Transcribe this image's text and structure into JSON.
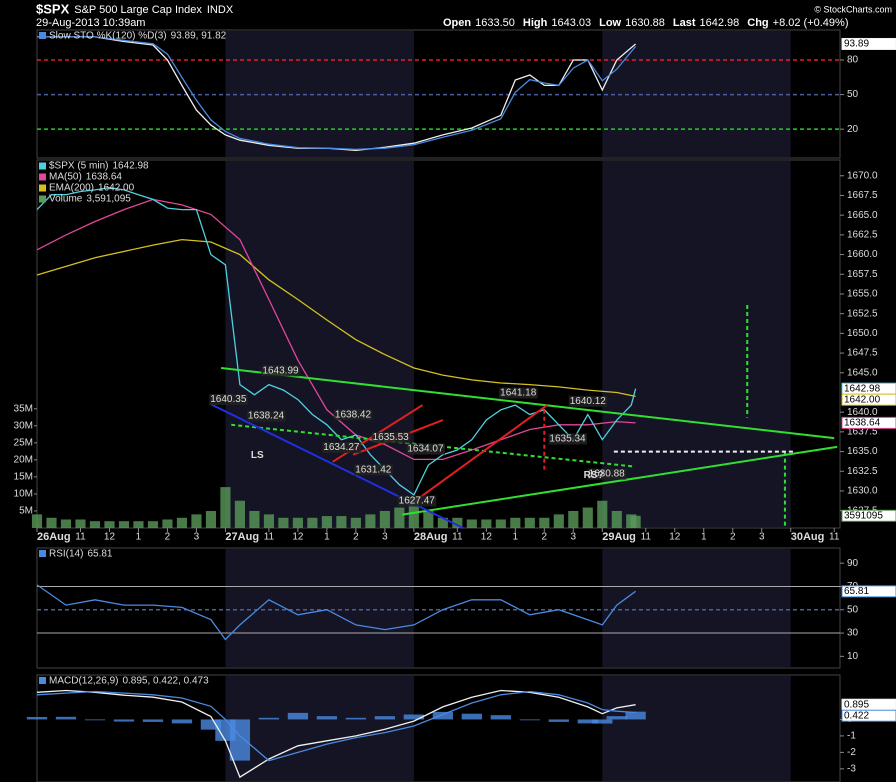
{
  "header": {
    "symbol": "$SPX",
    "name": "S&P 500 Large Cap Index",
    "exchange": "INDX",
    "date": "29-Aug-2013 10:39am",
    "credit": "© StockCharts.com",
    "quote": [
      {
        "label": "Open",
        "value": "1633.50"
      },
      {
        "label": "High",
        "value": "1643.03"
      },
      {
        "label": "Low",
        "value": "1630.88"
      },
      {
        "label": "Last",
        "value": "1642.98"
      },
      {
        "label": "Chg",
        "value": "+8.02 (+0.49%)"
      }
    ]
  },
  "chart_data": [
    {
      "type": "line",
      "title": "Slow STO %K(120) %D(3)",
      "legend_value": "93.89, 91.82",
      "ylim": [
        -5,
        106
      ],
      "yticks": [
        20,
        50,
        80
      ],
      "x": [
        0,
        1,
        2,
        3,
        4,
        4.5,
        5,
        5.5,
        6,
        6.5,
        7,
        8,
        9,
        10,
        11,
        12,
        13,
        14,
        15,
        16,
        16.5,
        17,
        17.5,
        18,
        18.5,
        19,
        19.5,
        20,
        20.65
      ],
      "ref_lines": [
        {
          "value": 80,
          "color": "#e02020",
          "dash": true
        },
        {
          "value": 50,
          "color": "#4a5fa0",
          "dash": true
        },
        {
          "value": 20,
          "color": "#20d020",
          "dash": true
        }
      ],
      "series": [
        {
          "color": "#f0f0f0",
          "values": [
            100,
            100,
            100,
            96,
            93,
            80,
            58,
            36.5,
            23.5,
            15,
            10.4,
            6,
            3.5,
            3.5,
            1.7,
            4.3,
            7.8,
            15,
            21,
            32,
            62.6,
            67,
            58,
            58,
            80,
            80,
            54,
            80,
            93.89
          ],
          "last_label": "93.89"
        },
        {
          "color": "#4a8ae0",
          "values": [
            100,
            100,
            100,
            97,
            94,
            85,
            65,
            45,
            28,
            18,
            12,
            7,
            4,
            3.5,
            2.5,
            3.5,
            6.5,
            13,
            19,
            29,
            52,
            63,
            60,
            58,
            73,
            80,
            62,
            72,
            91.82
          ]
        }
      ]
    },
    {
      "type": "line",
      "xlim": [
        0,
        27.7
      ],
      "xticks": [
        {
          "value": 0,
          "label": "26Aug"
        },
        {
          "value": 1.5,
          "label": "11"
        },
        {
          "value": 2.5,
          "label": "12"
        },
        {
          "value": 3.5,
          "label": "1"
        },
        {
          "value": 4.5,
          "label": "2"
        },
        {
          "value": 5.5,
          "label": "3"
        },
        {
          "value": 6.5,
          "label": "27Aug"
        },
        {
          "value": 8,
          "label": "11"
        },
        {
          "value": 9,
          "label": "12"
        },
        {
          "value": 10,
          "label": "1"
        },
        {
          "value": 11,
          "label": "2"
        },
        {
          "value": 12,
          "label": "3"
        },
        {
          "value": 13,
          "label": "28Aug"
        },
        {
          "value": 14.5,
          "label": "11"
        },
        {
          "value": 15.5,
          "label": "12"
        },
        {
          "value": 16.5,
          "label": "1"
        },
        {
          "value": 17.5,
          "label": "2"
        },
        {
          "value": 18.5,
          "label": "3"
        },
        {
          "value": 19.5,
          "label": "29Aug"
        },
        {
          "value": 21,
          "label": "11"
        },
        {
          "value": 22,
          "label": "12"
        },
        {
          "value": 23,
          "label": "1"
        },
        {
          "value": 24,
          "label": "2"
        },
        {
          "value": 25,
          "label": "3"
        },
        {
          "value": 26,
          "label": "30Aug"
        },
        {
          "value": 27.5,
          "label": "11"
        }
      ],
      "ylim": [
        1625.3,
        1672
      ],
      "yticks": [
        1627.5,
        {
          "value": 1630,
          "label": "1630.0"
        },
        1632.5,
        {
          "value": 1635,
          "label": "1635.0"
        },
        1637.5,
        {
          "value": 1640,
          "label": "1640.0"
        },
        {
          "value": 1645,
          "label": "1645.0"
        },
        1647.5,
        {
          "value": 1650,
          "label": "1650.0"
        },
        1652.5,
        {
          "value": 1655,
          "label": "1655.0"
        },
        1657.5,
        {
          "value": 1660,
          "label": "1660.0"
        },
        1662.5,
        {
          "value": 1665,
          "label": "1665.0"
        },
        1667.5,
        {
          "value": 1670,
          "label": "1670.0"
        }
      ],
      "y2lim": [
        0,
        108000000
      ],
      "y2ticks": [
        {
          "value": 5000000,
          "label": "5M"
        },
        {
          "value": 10000000,
          "label": "10M"
        },
        {
          "value": 15000000,
          "label": "15M"
        },
        {
          "value": 20000000,
          "label": "20M"
        },
        {
          "value": 25000000,
          "label": "25M"
        },
        {
          "value": 30000000,
          "label": "30M"
        },
        {
          "value": 35000000,
          "label": "35M"
        }
      ],
      "x": [
        0,
        0.5,
        1,
        1.5,
        2,
        2.5,
        3,
        3.5,
        4,
        4.5,
        5,
        5.5,
        6,
        6.5,
        7,
        7.5,
        8,
        8.5,
        9,
        9.5,
        10,
        10.5,
        11,
        11.5,
        12,
        12.5,
        13,
        13.5,
        14,
        14.5,
        15,
        15.5,
        16,
        16.5,
        17,
        17.5,
        18,
        18.5,
        19,
        19.5,
        20,
        20.5,
        20.65
      ],
      "series": [
        {
          "name": "Volume",
          "legend_value": "3,591,095",
          "type": "bar",
          "axis": "y2",
          "color": "#5a9a5a",
          "values": [
            4000000,
            3000000,
            2500000,
            2500000,
            2000000,
            2000000,
            2000000,
            2000000,
            2000000,
            2500000,
            3000000,
            4000000,
            5000000,
            12000000,
            8000000,
            5000000,
            4000000,
            3000000,
            3000000,
            3000000,
            3500000,
            3500000,
            3000000,
            4000000,
            5000000,
            6000000,
            9000000,
            5000000,
            3000000,
            3000000,
            2500000,
            2500000,
            2500000,
            3000000,
            3000000,
            3000000,
            4000000,
            5000000,
            6000000,
            8000000,
            5000000,
            4000000,
            3591095
          ],
          "last_label": "3591095"
        },
        {
          "name": "EMA(200)",
          "legend_value": "1642.00",
          "color": "#d4c020",
          "x": [
            0,
            2,
            4,
            5,
            6,
            7,
            8,
            9,
            10,
            11,
            12,
            13,
            14,
            15,
            16,
            17,
            18,
            19,
            20,
            20.65
          ],
          "values": [
            1657.4,
            1659.6,
            1661.2,
            1661.9,
            1661.6,
            1660.0,
            1656.8,
            1654.3,
            1651.7,
            1649.2,
            1647.3,
            1645.6,
            1644.7,
            1644.1,
            1643.7,
            1643.5,
            1643.2,
            1642.8,
            1642.5,
            1642.0
          ],
          "last_label": "1642.00"
        },
        {
          "name": "MA(50)",
          "legend_value": "1638.64",
          "color": "#e0489a",
          "x": [
            0,
            1,
            2,
            3,
            4,
            5,
            6,
            7,
            8,
            9,
            10,
            11,
            12,
            13,
            14,
            15,
            16,
            17,
            18,
            19,
            20,
            20.65
          ],
          "values": [
            1660.6,
            1662.5,
            1664.2,
            1665.7,
            1667.0,
            1666.3,
            1665.1,
            1661.9,
            1654.3,
            1646.6,
            1640.3,
            1637.1,
            1635.9,
            1634.0,
            1634.0,
            1635.2,
            1636.5,
            1637.8,
            1638.4,
            1638.4,
            1638.8,
            1638.64
          ],
          "last_label": "1638.64"
        },
        {
          "name": "$SPX (5 min)",
          "legend_value": "1642.98",
          "color": "#4fd0e0",
          "values": [
            1665.7,
            1667.6,
            1667.6,
            1668.0,
            1668.2,
            1668.5,
            1668.2,
            1667.6,
            1667.0,
            1665.9,
            1665.7,
            1665.7,
            1660.0,
            1658.7,
            1643.5,
            1642.2,
            1643.5,
            1642.8,
            1641.6,
            1639.7,
            1638.4,
            1636.5,
            1637.1,
            1634.6,
            1632.7,
            1630.8,
            1629.5,
            1633.3,
            1634.6,
            1635.2,
            1636.5,
            1639.0,
            1640.3,
            1640.9,
            1639.7,
            1640.3,
            1638.4,
            1636.5,
            1639.7,
            1636.5,
            1639.0,
            1640.9,
            1642.98
          ],
          "last_label": "1642.98"
        }
      ],
      "trendlines": [
        {
          "color": "#30e030",
          "x": [
            6.35,
            27.5
          ],
          "values": [
            1645.6,
            1636.7
          ]
        },
        {
          "color": "#30e030",
          "x": [
            12.6,
            27.6
          ],
          "values": [
            1627.0,
            1635.6
          ]
        },
        {
          "color": "#30e030",
          "dash": true,
          "x": [
            6.7,
            20.6
          ],
          "values": [
            1638.4,
            1633.1
          ]
        },
        {
          "color": "#2030e0",
          "x": [
            6.0,
            14.7
          ],
          "values": [
            1641.0,
            1625.3
          ]
        },
        {
          "color": "#e02020",
          "x": [
            10.2,
            13.3
          ],
          "values": [
            1633.7,
            1640.9
          ]
        },
        {
          "color": "#e02020",
          "x": [
            10.9,
            14.0
          ],
          "values": [
            1634.6,
            1639.0
          ]
        },
        {
          "color": "#e02020",
          "x": [
            13.1,
            17.6
          ],
          "values": [
            1628.9,
            1640.9
          ]
        },
        {
          "color": "#e02020",
          "dash": true,
          "x": [
            17.5,
            17.5
          ],
          "values": [
            1640.3,
            1632.7
          ]
        },
        {
          "color": "#30e030",
          "dash": true,
          "x": [
            24.5,
            24.5
          ],
          "values": [
            1653.6,
            1639.3
          ]
        },
        {
          "color": "#30e030",
          "dash": true,
          "x": [
            25.8,
            25.8
          ],
          "values": [
            1635.0,
            1625.3
          ]
        },
        {
          "color": "#f0f0f0",
          "dash": true,
          "x": [
            19.9,
            26.1
          ],
          "values": [
            1635.0,
            1635.0
          ]
        }
      ],
      "annotations": [
        {
          "x": 8.4,
          "value": 1643.99
        },
        {
          "x": 6.6,
          "value": 1640.35
        },
        {
          "x": 7.9,
          "value": 1638.24
        },
        {
          "x": 10.9,
          "value": 1638.42
        },
        {
          "x": 12.2,
          "value": 1635.53
        },
        {
          "x": 10.5,
          "value": 1634.27
        },
        {
          "x": 13.4,
          "value": 1634.07
        },
        {
          "x": 11.6,
          "value": 1631.42
        },
        {
          "x": 13.1,
          "value": 1627.47
        },
        {
          "x": 16.6,
          "value": 1641.18
        },
        {
          "x": 19.0,
          "value": 1640.12
        },
        {
          "x": 18.3,
          "value": 1635.34
        },
        {
          "x": 19.65,
          "value": 1630.88
        }
      ],
      "text_annotations": [
        {
          "x": 7.6,
          "value": 1634.5,
          "label": "LS",
          "color": "#30e030"
        },
        {
          "x": 19.2,
          "value": 1632.0,
          "label": "RS?",
          "color": "#30e030"
        }
      ]
    },
    {
      "type": "line",
      "title": "RSI(14)",
      "legend_value": "65.81",
      "ylim": [
        0,
        103
      ],
      "yticks": [
        10,
        30,
        50,
        70,
        90
      ],
      "x": [
        0,
        1,
        2,
        3,
        4,
        5,
        6,
        6.5,
        7,
        8,
        9,
        10,
        11,
        12,
        13,
        14,
        15,
        16,
        17,
        18,
        19,
        19.5,
        20,
        20.65
      ],
      "ref_lines": [
        {
          "value": 70,
          "color": "#aaaaaa"
        },
        {
          "value": 50,
          "color": "#4a5fa0",
          "dash": true
        },
        {
          "value": 30,
          "color": "#aaaaaa"
        }
      ],
      "series": [
        {
          "color": "#4a8ae0",
          "values": [
            71.3,
            54,
            58.5,
            54,
            54,
            52,
            41.5,
            24.5,
            37,
            58.5,
            45.7,
            50,
            37,
            33,
            37,
            50,
            58.5,
            58.5,
            45.7,
            50,
            41.5,
            37,
            54,
            65.81
          ],
          "last_label": "65.81"
        }
      ]
    },
    {
      "type": "line",
      "title": "MACD(12,26,9)",
      "legend_value": "0.895, 0.422, 0.473",
      "ylim": [
        -3.8,
        2.7
      ],
      "yticks": [
        0,
        -1,
        -2,
        -3
      ],
      "x": [
        0,
        1,
        2,
        3,
        4,
        5,
        6,
        6.5,
        7,
        8,
        9,
        10,
        11,
        12,
        13,
        14,
        15,
        16,
        17,
        18,
        19,
        19.5,
        20,
        20.65
      ],
      "series": [
        {
          "type": "bar",
          "color": "#4a8ae0",
          "values": [
            0.15,
            0.16,
            -0.05,
            -0.13,
            -0.15,
            -0.24,
            -0.62,
            -1.3,
            -2.5,
            0.1,
            0.4,
            0.2,
            0.1,
            0.2,
            0.3,
            0.46,
            0.35,
            0.26,
            -0.05,
            -0.15,
            -0.24,
            -0.25,
            0.2,
            0.473
          ]
        },
        {
          "color": "#f0f0f0",
          "values": [
            1.65,
            1.76,
            1.65,
            1.47,
            1.35,
            1.06,
            0.18,
            -1.3,
            -3.5,
            -2.4,
            -1.6,
            -1.3,
            -1.0,
            -0.6,
            -0.1,
            0.76,
            1.35,
            1.76,
            1.65,
            1.35,
            0.76,
            0.35,
            0.7,
            0.895
          ],
          "last_label": "0.895"
        },
        {
          "color": "#4a8ae0",
          "values": [
            1.5,
            1.6,
            1.7,
            1.6,
            1.5,
            1.3,
            0.8,
            0.0,
            -1.0,
            -2.5,
            -2.0,
            -1.5,
            -1.1,
            -0.8,
            -0.4,
            0.3,
            1.0,
            1.5,
            1.7,
            1.5,
            1.0,
            0.6,
            0.5,
            0.422
          ],
          "last_label": "0.422"
        }
      ]
    }
  ]
}
